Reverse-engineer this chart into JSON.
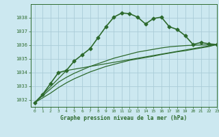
{
  "background_color": "#cce8f0",
  "grid_color": "#aaccd8",
  "line_color": "#2d6a2d",
  "title": "Graphe pression niveau de la mer (hPa)",
  "xlim": [
    -0.5,
    23
  ],
  "ylim": [
    1031.5,
    1039.0
  ],
  "yticks": [
    1032,
    1033,
    1034,
    1035,
    1036,
    1037,
    1038
  ],
  "xticks": [
    0,
    1,
    2,
    3,
    4,
    5,
    6,
    7,
    8,
    9,
    10,
    11,
    12,
    13,
    14,
    15,
    16,
    17,
    18,
    19,
    20,
    21,
    22,
    23
  ],
  "series": [
    {
      "x": [
        0,
        1,
        2,
        3,
        4,
        5,
        6,
        7,
        8,
        9,
        10,
        11,
        12,
        13,
        14,
        15,
        16,
        17,
        18,
        19,
        20,
        21,
        22,
        23
      ],
      "y": [
        1031.8,
        1032.4,
        1033.2,
        1034.0,
        1034.15,
        1034.85,
        1035.3,
        1035.75,
        1036.55,
        1037.35,
        1038.05,
        1038.35,
        1038.3,
        1038.05,
        1037.55,
        1037.95,
        1038.05,
        1037.35,
        1037.15,
        1036.7,
        1036.05,
        1036.2,
        1036.1,
        1036.05
      ],
      "marker": "D",
      "markersize": 2.5,
      "linewidth": 1.2
    },
    {
      "x": [
        0,
        1,
        2,
        3,
        4,
        5,
        6,
        7,
        8,
        9,
        10,
        11,
        12,
        13,
        14,
        15,
        16,
        17,
        18,
        19,
        20,
        21,
        22,
        23
      ],
      "y": [
        1031.8,
        1032.3,
        1032.8,
        1033.3,
        1033.65,
        1033.95,
        1034.2,
        1034.45,
        1034.65,
        1034.85,
        1035.05,
        1035.2,
        1035.35,
        1035.5,
        1035.6,
        1035.7,
        1035.8,
        1035.88,
        1035.93,
        1035.97,
        1036.0,
        1036.02,
        1036.03,
        1036.05
      ],
      "marker": null,
      "markersize": 0,
      "linewidth": 0.9
    },
    {
      "x": [
        0,
        1,
        2,
        3,
        4,
        5,
        6,
        7,
        8,
        9,
        10,
        11,
        12,
        13,
        14,
        15,
        16,
        17,
        18,
        19,
        20,
        21,
        22,
        23
      ],
      "y": [
        1031.8,
        1032.15,
        1032.5,
        1032.9,
        1033.25,
        1033.55,
        1033.8,
        1034.05,
        1034.25,
        1034.45,
        1034.6,
        1034.75,
        1034.9,
        1035.0,
        1035.1,
        1035.2,
        1035.32,
        1035.42,
        1035.52,
        1035.6,
        1035.7,
        1035.8,
        1035.9,
        1036.05
      ],
      "marker": null,
      "markersize": 0,
      "linewidth": 0.9
    },
    {
      "x": [
        0,
        4,
        23
      ],
      "y": [
        1031.8,
        1034.15,
        1036.05
      ],
      "marker": null,
      "markersize": 0,
      "linewidth": 0.9
    }
  ]
}
